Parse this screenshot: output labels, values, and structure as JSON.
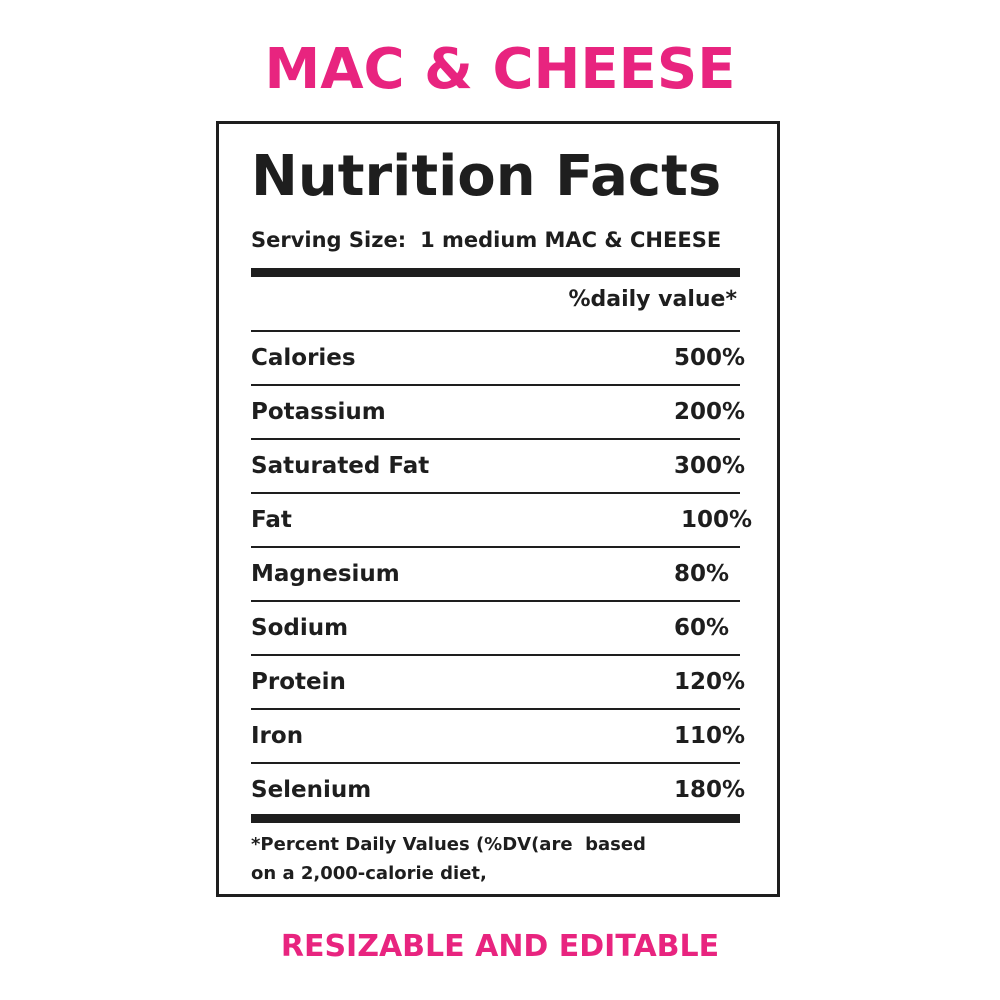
{
  "headline": "MAC & CHEESE",
  "label": {
    "title": "Nutrition Facts",
    "serving_label": "Serving Size:",
    "serving_value": "1 medium MAC & CHEESE",
    "dv_header": "%daily value*",
    "rows": [
      {
        "name": "Calories",
        "pct": "500%"
      },
      {
        "name": "Potassium",
        "pct": "200%"
      },
      {
        "name": "Saturated Fat",
        "pct": "300%"
      },
      {
        "name": "Fat",
        "pct": "100%"
      },
      {
        "name": "Magnesium",
        "pct": "80%"
      },
      {
        "name": "Sodium",
        "pct": "60%"
      },
      {
        "name": "Protein",
        "pct": "120%"
      },
      {
        "name": "Iron",
        "pct": "110%"
      },
      {
        "name": "Selenium",
        "pct": "180%"
      }
    ],
    "footnote_line1": "*Percent Daily Values (%DV(are  based",
    "footnote_line2": "on a 2,000-calorie diet,"
  },
  "footer_tag": "RESIZABLE AND EDITABLE",
  "colors": {
    "accent": "#e8247f",
    "ink": "#1e1e1e"
  }
}
